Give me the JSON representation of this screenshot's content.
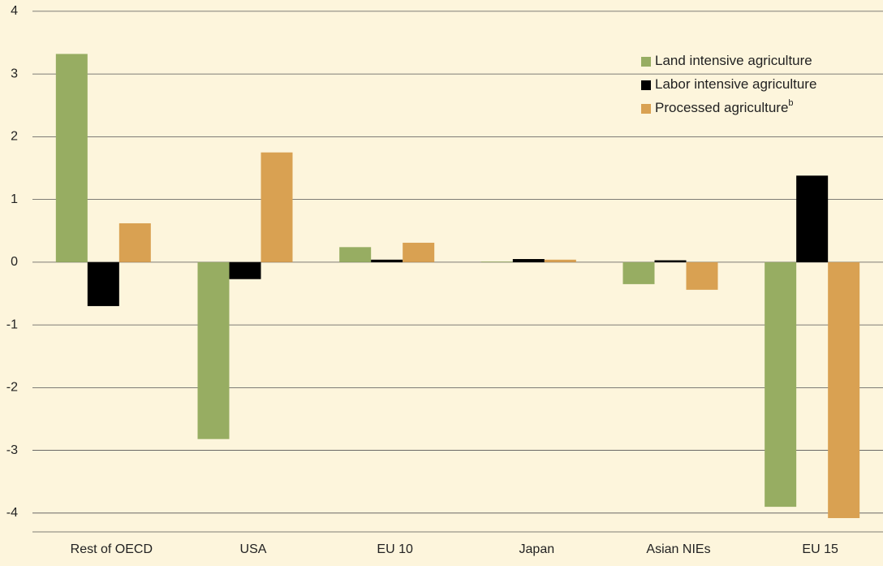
{
  "chart_data": {
    "type": "bar",
    "categories": [
      "Rest of OECD",
      "USA",
      "EU 10",
      "Japan",
      "Asian NIEs",
      "EU 15"
    ],
    "series": [
      {
        "name": "Land intensive agriculture",
        "color": "#97ad62",
        "values": [
          3.32,
          -2.82,
          0.24,
          0.01,
          -0.35,
          -3.9
        ]
      },
      {
        "name": "Labor intensive agriculture",
        "color": "#000000",
        "values": [
          -0.7,
          -0.27,
          0.04,
          0.05,
          0.03,
          1.38
        ]
      },
      {
        "name": "Processed agriculture",
        "superscript": "b",
        "color": "#d9a152",
        "values": [
          0.62,
          1.75,
          0.31,
          0.04,
          -0.44,
          -4.08
        ]
      }
    ],
    "ylim": [
      -4.3,
      4.18
    ],
    "yticks": [
      -4,
      -3,
      -2,
      -1,
      0,
      1,
      2,
      3,
      4
    ],
    "grid": true,
    "legend": "upper right"
  }
}
